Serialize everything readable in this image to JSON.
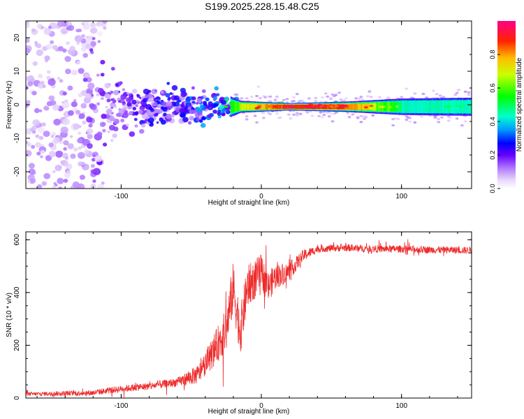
{
  "figure_title": "S199.2025.228.15.48.C25",
  "colors": {
    "snr_line": "#ee2a2a",
    "background": "#ffffff",
    "axis": "#000000",
    "colormap": [
      "#ffffff",
      "#ece0fb",
      "#cc99ff",
      "#9933ff",
      "#6600ff",
      "#0000ff",
      "#0099ff",
      "#00ffcc",
      "#00ff00",
      "#ccff00",
      "#ffcc00",
      "#ff4400",
      "#ff0088"
    ]
  },
  "chart_data": [
    {
      "type": "heatmap",
      "title": "",
      "xlabel": "Height of straight line (km)",
      "ylabel": "Frequency (Hz)",
      "xlim": [
        -168,
        150
      ],
      "ylim": [
        -25,
        25
      ],
      "x_ticks": [
        -100,
        0,
        100
      ],
      "x_tick_labels": [
        "-100",
        "0",
        "100"
      ],
      "y_ticks": [
        -20,
        -10,
        0,
        10,
        20
      ],
      "y_tick_labels": [
        "-20",
        "-10",
        "0",
        "10",
        "20"
      ],
      "colorbar": {
        "label": "Normalized spectral amplitude",
        "range": [
          0,
          1
        ],
        "ticks": [
          0.0,
          0.2,
          0.4,
          0.6,
          0.8
        ],
        "tick_labels": [
          "0.0",
          "0.2",
          "0.4",
          "0.6",
          "0.8"
        ]
      },
      "ridge": {
        "description_points": [
          {
            "x": -150,
            "freq_spread": 25,
            "amp": 0.12
          },
          {
            "x": -100,
            "freq_spread": 6,
            "amp": 0.2
          },
          {
            "x": -60,
            "freq_spread": 5,
            "amp": 0.28
          },
          {
            "x": -30,
            "freq_spread": 3.5,
            "amp": 0.35
          },
          {
            "x": -15,
            "freq_spread": 1.2,
            "amp": 0.7
          },
          {
            "x": 20,
            "freq_spread": 0.6,
            "amp": 0.95
          },
          {
            "x": 60,
            "freq_spread": 1.0,
            "amp": 0.9
          },
          {
            "x": 100,
            "freq_spread": 1.8,
            "amp": 0.5
          },
          {
            "x": 150,
            "freq_spread": 2.0,
            "amp": 0.45
          }
        ],
        "center_freq": -0.6
      }
    },
    {
      "type": "line",
      "title": "",
      "xlabel": "Height of straight line (km)",
      "ylabel": "SNR (10 * v/v)",
      "xlim": [
        -168,
        150
      ],
      "ylim": [
        0,
        630
      ],
      "x_ticks": [
        -100,
        0,
        100
      ],
      "x_tick_labels": [
        "-100",
        "0",
        "100"
      ],
      "y_ticks": [
        0,
        200,
        400,
        600
      ],
      "y_tick_labels": [
        "0",
        "200",
        "400",
        "600"
      ],
      "series": [
        {
          "name": "SNR",
          "envelope": [
            {
              "x": -168,
              "y": 15
            },
            {
              "x": -140,
              "y": 18
            },
            {
              "x": -120,
              "y": 20
            },
            {
              "x": -100,
              "y": 35
            },
            {
              "x": -80,
              "y": 45
            },
            {
              "x": -60,
              "y": 60
            },
            {
              "x": -45,
              "y": 90
            },
            {
              "x": -35,
              "y": 170
            },
            {
              "x": -25,
              "y": 260
            },
            {
              "x": -20,
              "y": 420
            },
            {
              "x": -15,
              "y": 250
            },
            {
              "x": -10,
              "y": 420
            },
            {
              "x": -5,
              "y": 450
            },
            {
              "x": 0,
              "y": 480
            },
            {
              "x": 5,
              "y": 420
            },
            {
              "x": 10,
              "y": 460
            },
            {
              "x": 20,
              "y": 480
            },
            {
              "x": 30,
              "y": 540
            },
            {
              "x": 40,
              "y": 565
            },
            {
              "x": 60,
              "y": 570
            },
            {
              "x": 80,
              "y": 565
            },
            {
              "x": 100,
              "y": 565
            },
            {
              "x": 120,
              "y": 562
            },
            {
              "x": 150,
              "y": 560
            }
          ],
          "noise_amplitude": [
            {
              "x": -168,
              "a": 12
            },
            {
              "x": -60,
              "a": 30
            },
            {
              "x": -40,
              "a": 80
            },
            {
              "x": -20,
              "a": 180
            },
            {
              "x": 0,
              "a": 120
            },
            {
              "x": 20,
              "a": 60
            },
            {
              "x": 40,
              "a": 25
            },
            {
              "x": 150,
              "a": 25
            }
          ]
        }
      ]
    }
  ]
}
